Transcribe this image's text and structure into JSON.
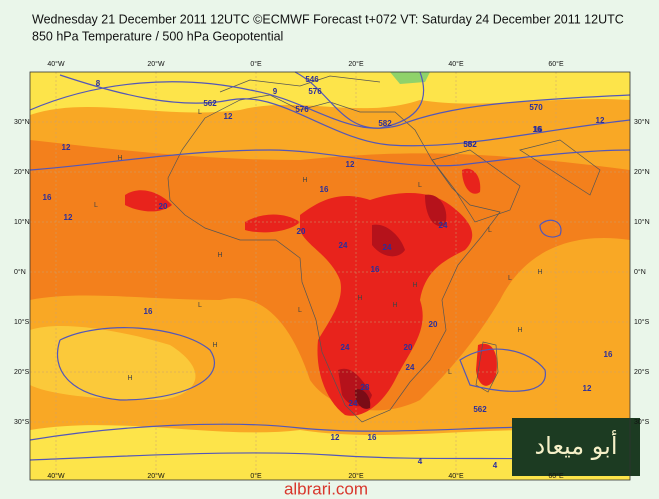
{
  "header": {
    "line1": "Wednesday 21 December 2011 12UTC ©ECMWF Forecast t+072 VT: Saturday 24 December 2011 12UTC",
    "line2": "850 hPa Temperature / 500 hPa Geopotential"
  },
  "map": {
    "lon_labels": [
      "40°W",
      "20°W",
      "0°E",
      "20°E",
      "40°E",
      "60°E"
    ],
    "lat_labels": [
      "30°N",
      "20°N",
      "10°N",
      "0°N",
      "10°S",
      "20°S",
      "30°S"
    ],
    "contour_labels": [
      "8",
      "12",
      "562",
      "9",
      "576",
      "582",
      "12",
      "16",
      "12",
      "552",
      "16",
      "20",
      "20",
      "24",
      "24",
      "24",
      "20",
      "16",
      "12",
      "16",
      "16",
      "24",
      "24",
      "28",
      "24",
      "20",
      "16",
      "16",
      "12",
      "12",
      "562",
      "4",
      "4",
      "576",
      "12",
      "582",
      "546",
      "570",
      "16"
    ],
    "pressure_marks": [
      "H",
      "L",
      "H",
      "L",
      "H",
      "H",
      "L",
      "H",
      "L",
      "H",
      "L",
      "H",
      "H",
      "L",
      "L",
      "H",
      "H",
      "L"
    ]
  },
  "watermark": {
    "arabic": "أبو ميعاد",
    "site": "albrari.com"
  }
}
